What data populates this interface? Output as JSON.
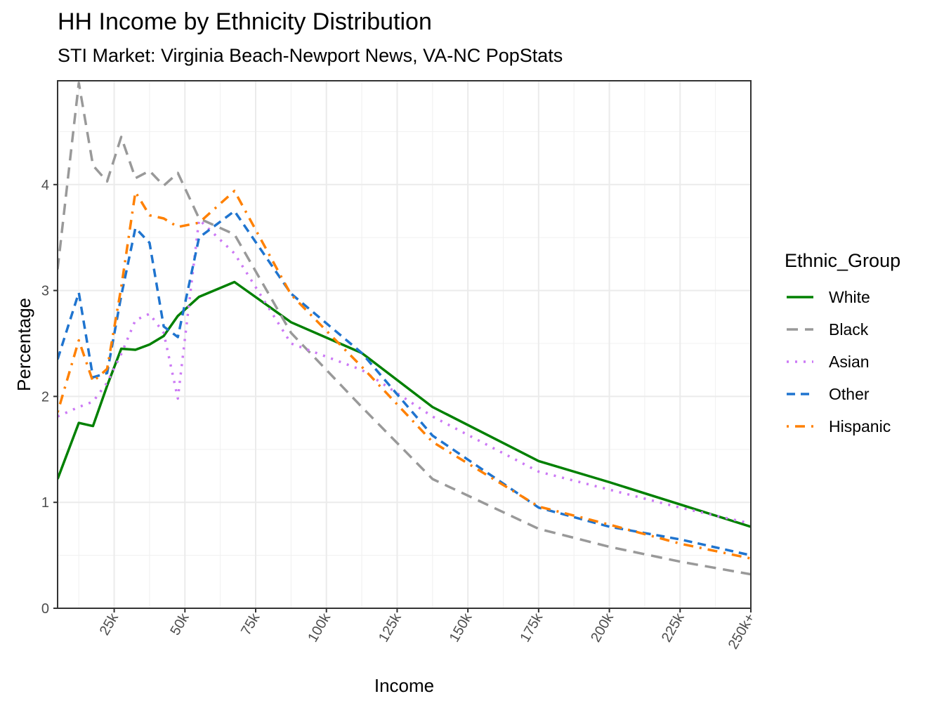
{
  "chart_data": {
    "type": "line",
    "title": "HH Income by Ethnicity Distribution",
    "subtitle": "STI Market: Virginia Beach-Newport News, VA-NC PopStats",
    "xlabel": "Income",
    "ylabel": "Percentage",
    "xlim": [
      5,
      250
    ],
    "ylim": [
      0,
      4.98
    ],
    "x_ticks": [
      25,
      50,
      75,
      100,
      125,
      150,
      175,
      200,
      225,
      250
    ],
    "x_tick_labels": [
      "25k",
      "50k",
      "75k",
      "100k",
      "125k",
      "150k",
      "175k",
      "200k",
      "225k",
      "250k+"
    ],
    "y_ticks": [
      0,
      1,
      2,
      3,
      4
    ],
    "y_tick_labels": [
      "0",
      "1",
      "2",
      "3",
      "4"
    ],
    "grid": true,
    "legend": {
      "title": "Ethnic_Group",
      "position": "right"
    },
    "x": [
      5,
      12.5,
      17.5,
      22.5,
      27.5,
      32.5,
      37.5,
      42.5,
      47.5,
      55,
      67.5,
      87.5,
      112.5,
      137.5,
      175,
      200,
      225,
      250
    ],
    "series": [
      {
        "name": "White",
        "color": "#008000",
        "dash": "solid",
        "values": [
          1.22,
          1.75,
          1.72,
          2.1,
          2.45,
          2.44,
          2.49,
          2.57,
          2.76,
          2.94,
          3.08,
          2.7,
          2.41,
          1.9,
          1.39,
          1.19,
          0.98,
          0.77
        ]
      },
      {
        "name": "Black",
        "color": "#999999",
        "dash": "long",
        "values": [
          3.2,
          4.96,
          4.18,
          4.03,
          4.45,
          4.06,
          4.13,
          3.99,
          4.11,
          3.68,
          3.53,
          2.6,
          1.9,
          1.22,
          0.75,
          0.58,
          0.44,
          0.32
        ]
      },
      {
        "name": "Asian",
        "color": "#CC79F5",
        "dash": "dotted",
        "values": [
          1.81,
          1.9,
          1.95,
          2.13,
          2.4,
          2.72,
          2.78,
          2.6,
          1.98,
          3.67,
          3.35,
          2.5,
          2.25,
          1.81,
          1.29,
          1.12,
          0.95,
          0.8
        ]
      },
      {
        "name": "Other",
        "color": "#1F74CF",
        "dash": "dashed",
        "values": [
          2.35,
          2.98,
          2.18,
          2.22,
          2.95,
          3.59,
          3.45,
          2.66,
          2.56,
          3.5,
          3.75,
          2.97,
          2.41,
          1.63,
          0.95,
          0.77,
          0.65,
          0.5
        ]
      },
      {
        "name": "Hispanic",
        "color": "#FF8000",
        "dash": "dotdash",
        "values": [
          1.85,
          2.53,
          2.14,
          2.26,
          3.03,
          3.93,
          3.71,
          3.68,
          3.6,
          3.64,
          3.94,
          2.96,
          2.28,
          1.57,
          0.96,
          0.79,
          0.61,
          0.47
        ]
      }
    ]
  }
}
